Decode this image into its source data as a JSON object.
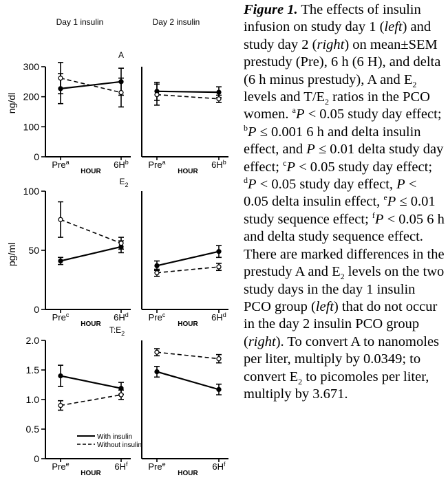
{
  "chart_data": [
    {
      "type": "line",
      "panel": "A, day 1 insulin",
      "title": "Day 1 insulin",
      "panel_label": "A",
      "ylabel": "ng/dl",
      "xlabel": "HOUR",
      "categories": [
        "Pre",
        "6H"
      ],
      "category_superscripts": [
        "a",
        "b"
      ],
      "ylim": [
        0,
        300
      ],
      "yticks": [
        "0",
        "100",
        "200",
        "300"
      ],
      "series": [
        {
          "name": "With insulin",
          "values": [
            227,
            250
          ],
          "sem": [
            50,
            45
          ]
        },
        {
          "name": "Without insulin",
          "values": [
            262,
            214
          ],
          "sem": [
            52,
            48
          ]
        }
      ]
    },
    {
      "type": "line",
      "panel": "A, day 2 insulin",
      "title": "Day 2 insulin",
      "categories": [
        "Pre",
        "6H"
      ],
      "category_superscripts": [
        "a",
        "b"
      ],
      "xlabel": "HOUR",
      "ylim": [
        0,
        300
      ],
      "series": [
        {
          "name": "With insulin",
          "values": [
            218,
            215
          ],
          "sem": [
            30,
            18
          ]
        },
        {
          "name": "Without insulin",
          "values": [
            207,
            193
          ],
          "sem": [
            35,
            12
          ]
        }
      ]
    },
    {
      "type": "line",
      "panel": "E2, day 1 insulin",
      "panel_label": "E",
      "panel_label_sub": "2",
      "ylabel": "pg/ml",
      "xlabel": "HOUR",
      "categories": [
        "Pre",
        "6H"
      ],
      "category_superscripts": [
        "c",
        "d"
      ],
      "ylim": [
        0,
        100
      ],
      "yticks": [
        "0",
        "50",
        "100"
      ],
      "series": [
        {
          "name": "With insulin",
          "values": [
            41,
            53
          ],
          "sem": [
            3,
            5
          ]
        },
        {
          "name": "Without insulin",
          "values": [
            76,
            56
          ],
          "sem": [
            15,
            5
          ]
        }
      ]
    },
    {
      "type": "line",
      "panel": "E2, day 2 insulin",
      "categories": [
        "Pre",
        "6H"
      ],
      "category_superscripts": [
        "c",
        "d"
      ],
      "xlabel": "HOUR",
      "ylim": [
        0,
        100
      ],
      "series": [
        {
          "name": "With insulin",
          "values": [
            37,
            49
          ],
          "sem": [
            4,
            5
          ]
        },
        {
          "name": "Without insulin",
          "values": [
            31,
            36
          ],
          "sem": [
            3,
            3
          ]
        }
      ]
    },
    {
      "type": "line",
      "panel": "T:E2, day 1 insulin",
      "panel_label": "T:E",
      "panel_label_sub": "2",
      "xlabel": "HOUR",
      "categories": [
        "Pre",
        "6H"
      ],
      "category_superscripts": [
        "e",
        "f"
      ],
      "ylim": [
        0,
        2.0
      ],
      "yticks": [
        "0",
        "0.5",
        "1.0",
        "1.5",
        "2.0"
      ],
      "legend": {
        "placement": "bottom-right",
        "entries": [
          "With insulin",
          "Without insulin"
        ]
      },
      "series": [
        {
          "name": "With insulin",
          "values": [
            1.4,
            1.19
          ],
          "sem": [
            0.18,
            0.1
          ]
        },
        {
          "name": "Without insulin",
          "values": [
            0.9,
            1.08
          ],
          "sem": [
            0.08,
            0.08
          ]
        }
      ]
    },
    {
      "type": "line",
      "panel": "T:E2, day 2 insulin",
      "categories": [
        "Pre",
        "6H"
      ],
      "category_superscripts": [
        "e",
        "f"
      ],
      "xlabel": "HOUR",
      "ylim": [
        0,
        2.0
      ],
      "series": [
        {
          "name": "With insulin",
          "values": [
            1.47,
            1.17
          ],
          "sem": [
            0.09,
            0.09
          ]
        },
        {
          "name": "Without insulin",
          "values": [
            1.8,
            1.69
          ],
          "sem": [
            0.06,
            0.07
          ]
        }
      ]
    }
  ],
  "caption": {
    "figure_label": "Figure 1.",
    "s01": " The effects of insulin infusion on study day 1 (",
    "left": "left",
    "s02": ") and study day 2 (",
    "right": "right",
    "s03": ") on mean±SEM prestudy (Pre), 6 h (6 H), and delta (6 h minus prestudy), A and E",
    "sub2": "2",
    "s04": " levels and T/E",
    "s05": " ratios in the PCO women. ",
    "mark_a": "a",
    "P": "P",
    "s06": " < 0.05 study day effect; ",
    "mark_b": "b",
    "s07": " ≤ 0.001 6 h and delta insulin effect, and ",
    "s08": " ≤ 0.01 delta study day effect; ",
    "mark_c": "c",
    "s09": " < 0.05 study day effect; ",
    "mark_d": "d",
    "s10": " < 0.05 study day effect, ",
    "s11": " < 0.05 delta insulin effect, ",
    "mark_e": "e",
    "s12": " ≤ 0.01 study sequence effect; ",
    "mark_f": "f",
    "s13": " < 0.05 6 h and delta study sequence effect. There are marked differences in the prestudy A and E",
    "s14": " levels on the two study days in the day 1 insulin PCO group (",
    "s15": ") that do not occur in the day 2 insulin PCO group (",
    "s16": "). To convert A to nanomoles per liter, multiply by 0.0349; to convert E",
    "s17": " to picomoles per liter, multiply by 3.671."
  }
}
